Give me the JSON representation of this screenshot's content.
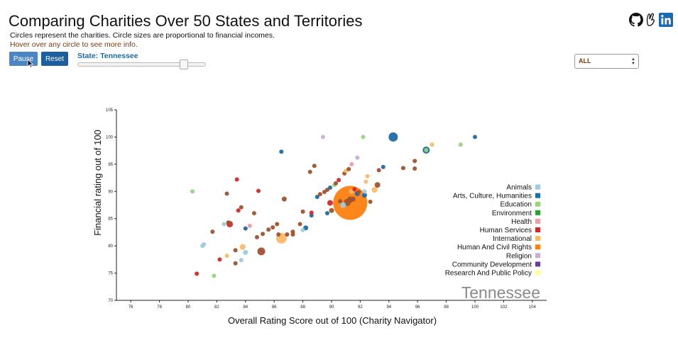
{
  "header": {
    "title": "Comparing Charities Over 50 States and Territories",
    "subtitle": "Circles represent the charities. Circle sizes are proportional to financial incomes.",
    "hint": "Hover over any circle to see more info."
  },
  "controls": {
    "pause_label": "Pause",
    "reset_label": "Reset",
    "state_prefix": "State: ",
    "state_name": "Tennessee",
    "state_label": "State: Tennessee",
    "slider_position_fraction": 0.83,
    "select_value": "ALL"
  },
  "social_icons": [
    "github-icon",
    "devpost-icon",
    "linkedin-icon"
  ],
  "colors": {
    "Animals": "#9ecae1",
    "Arts, Culture, Humanities": "#1f6aa8",
    "Education": "#98d47c",
    "Environment": "#2ca02c",
    "Health": "#f19ca6",
    "Human Services": "#d62728",
    "International": "#fdb868",
    "Human And Civil Rights": "#ff7f0e",
    "Religion": "#c5b0d5",
    "Community Development": "#6a3d9a",
    "Research And Public Policy": "#ffff99",
    "Highlighted": "#a0522d"
  },
  "chart_data": {
    "type": "scatter",
    "title": "",
    "xlabel": "Overall Rating Score out of 100 (Charity Navigator)",
    "ylabel": "Financial rating out of 100",
    "xlim": [
      75,
      105
    ],
    "ylim": [
      70,
      105
    ],
    "xticks": [
      76,
      78,
      80,
      82,
      84,
      86,
      88,
      90,
      92,
      94,
      96,
      98,
      100,
      102,
      104
    ],
    "yticks": [
      70,
      75,
      80,
      85,
      90,
      95,
      100,
      105
    ],
    "grid": false,
    "legend_position": "right",
    "legend": [
      "Animals",
      "Arts, Culture, Humanities",
      "Education",
      "Environment",
      "Health",
      "Human Services",
      "International",
      "Human And Civil Rights",
      "Religion",
      "Community Development",
      "Research And Public Policy"
    ],
    "state_watermark": "Tennessee",
    "points": [
      {
        "x": 80.3,
        "y": 90.0,
        "r": 3,
        "cat": "Education"
      },
      {
        "x": 80.6,
        "y": 74.9,
        "r": 3,
        "cat": "Human Services"
      },
      {
        "x": 81.0,
        "y": 80.0,
        "r": 3,
        "cat": "Animals"
      },
      {
        "x": 81.1,
        "y": 80.3,
        "r": 3,
        "cat": "Animals"
      },
      {
        "x": 81.8,
        "y": 74.5,
        "r": 3,
        "cat": "Education"
      },
      {
        "x": 81.7,
        "y": 82.6,
        "r": 3,
        "cat": "Highlighted"
      },
      {
        "x": 82.2,
        "y": 77.5,
        "r": 3,
        "cat": "Human Services"
      },
      {
        "x": 82.5,
        "y": 84.0,
        "r": 3,
        "cat": "Animals"
      },
      {
        "x": 82.7,
        "y": 78.2,
        "r": 3,
        "cat": "International"
      },
      {
        "x": 82.8,
        "y": 84.3,
        "r": 3,
        "cat": "Highlighted"
      },
      {
        "x": 82.7,
        "y": 89.6,
        "r": 3,
        "cat": "Highlighted"
      },
      {
        "x": 82.9,
        "y": 84.0,
        "r": 4.5,
        "cat": "Human Services"
      },
      {
        "x": 83.3,
        "y": 79.2,
        "r": 3,
        "cat": "Highlighted"
      },
      {
        "x": 83.3,
        "y": 76.8,
        "r": 3,
        "cat": "Highlighted"
      },
      {
        "x": 83.4,
        "y": 92.2,
        "r": 3,
        "cat": "Human Services"
      },
      {
        "x": 83.5,
        "y": 86.5,
        "r": 3,
        "cat": "Human Services"
      },
      {
        "x": 83.7,
        "y": 87.1,
        "r": 3,
        "cat": "Highlighted"
      },
      {
        "x": 83.7,
        "y": 77.4,
        "r": 3,
        "cat": "Animals"
      },
      {
        "x": 83.8,
        "y": 79.8,
        "r": 4,
        "cat": "International"
      },
      {
        "x": 84.0,
        "y": 83.2,
        "r": 3,
        "cat": "Arts, Culture, Humanities"
      },
      {
        "x": 84.0,
        "y": 78.8,
        "r": 3.5,
        "cat": "Animals"
      },
      {
        "x": 84.3,
        "y": 83.7,
        "r": 3,
        "cat": "Health"
      },
      {
        "x": 84.6,
        "y": 86.0,
        "r": 3,
        "cat": "Highlighted"
      },
      {
        "x": 84.8,
        "y": 81.6,
        "r": 3,
        "cat": "Highlighted"
      },
      {
        "x": 84.9,
        "y": 90.1,
        "r": 3,
        "cat": "Human Services"
      },
      {
        "x": 85.1,
        "y": 79.0,
        "r": 5.5,
        "cat": "Highlighted"
      },
      {
        "x": 85.2,
        "y": 82.2,
        "r": 3,
        "cat": "Highlighted"
      },
      {
        "x": 85.6,
        "y": 83.0,
        "r": 3,
        "cat": "Highlighted"
      },
      {
        "x": 85.9,
        "y": 83.4,
        "r": 3,
        "cat": "Highlighted"
      },
      {
        "x": 86.2,
        "y": 84.0,
        "r": 3,
        "cat": "Highlighted"
      },
      {
        "x": 86.3,
        "y": 82.1,
        "r": 3,
        "cat": "Highlighted"
      },
      {
        "x": 86.5,
        "y": 97.3,
        "r": 3,
        "cat": "Arts, Culture, Humanities"
      },
      {
        "x": 86.5,
        "y": 81.4,
        "r": 7.5,
        "cat": "International"
      },
      {
        "x": 86.7,
        "y": 88.6,
        "r": 3.5,
        "cat": "Highlighted"
      },
      {
        "x": 86.9,
        "y": 82.1,
        "r": 3,
        "cat": "Highlighted"
      },
      {
        "x": 87.3,
        "y": 82.6,
        "r": 3,
        "cat": "Highlighted"
      },
      {
        "x": 87.3,
        "y": 82.1,
        "r": 3,
        "cat": "Highlighted"
      },
      {
        "x": 87.8,
        "y": 84.0,
        "r": 3,
        "cat": "Highlighted"
      },
      {
        "x": 88.0,
        "y": 86.3,
        "r": 3,
        "cat": "Highlighted"
      },
      {
        "x": 88.0,
        "y": 82.9,
        "r": 3,
        "cat": "Animals"
      },
      {
        "x": 88.2,
        "y": 83.3,
        "r": 3.5,
        "cat": "Arts, Culture, Humanities"
      },
      {
        "x": 88.5,
        "y": 93.6,
        "r": 3,
        "cat": "Highlighted"
      },
      {
        "x": 88.6,
        "y": 85.6,
        "r": 3,
        "cat": "Arts, Culture, Humanities"
      },
      {
        "x": 88.6,
        "y": 86.1,
        "r": 3,
        "cat": "Human Services"
      },
      {
        "x": 88.8,
        "y": 94.7,
        "r": 3,
        "cat": "Highlighted"
      },
      {
        "x": 89.0,
        "y": 89.0,
        "r": 3,
        "cat": "Arts, Culture, Humanities"
      },
      {
        "x": 89.2,
        "y": 89.5,
        "r": 3,
        "cat": "Highlighted"
      },
      {
        "x": 89.4,
        "y": 100.0,
        "r": 3,
        "cat": "Religion"
      },
      {
        "x": 89.5,
        "y": 89.9,
        "r": 3,
        "cat": "Highlighted"
      },
      {
        "x": 89.7,
        "y": 90.3,
        "r": 3,
        "cat": "Highlighted"
      },
      {
        "x": 89.7,
        "y": 86.0,
        "r": 3,
        "cat": "Arts, Culture, Humanities"
      },
      {
        "x": 89.9,
        "y": 90.7,
        "r": 3,
        "cat": "Arts, Culture, Humanities"
      },
      {
        "x": 89.9,
        "y": 87.9,
        "r": 4,
        "cat": "Human Services"
      },
      {
        "x": 90.0,
        "y": 86.5,
        "r": 3.5,
        "cat": "Highlighted"
      },
      {
        "x": 90.2,
        "y": 91.2,
        "r": 3,
        "cat": "Education"
      },
      {
        "x": 90.3,
        "y": 91.5,
        "r": 3,
        "cat": "Highlighted"
      },
      {
        "x": 90.5,
        "y": 92.1,
        "r": 3,
        "cat": "Human Services"
      },
      {
        "x": 90.6,
        "y": 88.2,
        "r": 3,
        "cat": "Highlighted"
      },
      {
        "x": 90.8,
        "y": 87.5,
        "r": 4,
        "cat": "Animals"
      },
      {
        "x": 90.9,
        "y": 93.3,
        "r": 3,
        "cat": "Highlighted"
      },
      {
        "x": 91.0,
        "y": 93.8,
        "r": 3,
        "cat": "International"
      },
      {
        "x": 91.2,
        "y": 94.1,
        "r": 3,
        "cat": "Highlighted"
      },
      {
        "x": 91.1,
        "y": 88.0,
        "r": 5,
        "cat": "Highlighted"
      },
      {
        "x": 91.3,
        "y": 88.5,
        "r": 4.5,
        "cat": "Highlighted"
      },
      {
        "x": 91.3,
        "y": 87.9,
        "r": 24,
        "cat": "Human And Civil Rights"
      },
      {
        "x": 91.5,
        "y": 88.6,
        "r": 3.5,
        "cat": "Highlighted"
      },
      {
        "x": 91.4,
        "y": 95.0,
        "r": 3,
        "cat": "Health"
      },
      {
        "x": 91.4,
        "y": 90.0,
        "r": 3.5,
        "cat": "International"
      },
      {
        "x": 91.6,
        "y": 90.4,
        "r": 3,
        "cat": "Human Services"
      },
      {
        "x": 91.8,
        "y": 89.6,
        "r": 3.5,
        "cat": "Arts, Culture, Humanities"
      },
      {
        "x": 91.8,
        "y": 96.2,
        "r": 3,
        "cat": "Religion"
      },
      {
        "x": 91.9,
        "y": 89.9,
        "r": 3,
        "cat": "Highlighted"
      },
      {
        "x": 92.2,
        "y": 100.0,
        "r": 3,
        "cat": "Education"
      },
      {
        "x": 92.3,
        "y": 89.3,
        "r": 3.5,
        "cat": "Arts, Culture, Humanities"
      },
      {
        "x": 92.3,
        "y": 90.0,
        "r": 3,
        "cat": "Animals"
      },
      {
        "x": 92.4,
        "y": 91.8,
        "r": 3,
        "cat": "International"
      },
      {
        "x": 92.5,
        "y": 92.8,
        "r": 3,
        "cat": "International"
      },
      {
        "x": 92.7,
        "y": 88.1,
        "r": 3,
        "cat": "Highlighted"
      },
      {
        "x": 93.0,
        "y": 90.3,
        "r": 4,
        "cat": "International"
      },
      {
        "x": 93.2,
        "y": 91.2,
        "r": 4,
        "cat": "Highlighted"
      },
      {
        "x": 93.3,
        "y": 93.9,
        "r": 3,
        "cat": "Highlighted"
      },
      {
        "x": 93.6,
        "y": 94.5,
        "r": 3,
        "cat": "Arts, Culture, Humanities"
      },
      {
        "x": 94.3,
        "y": 100.0,
        "r": 6.5,
        "cat": "Arts, Culture, Humanities"
      },
      {
        "x": 95.0,
        "y": 94.3,
        "r": 3,
        "cat": "Highlighted"
      },
      {
        "x": 95.8,
        "y": 95.6,
        "r": 3,
        "cat": "Highlighted"
      },
      {
        "x": 95.8,
        "y": 94.2,
        "r": 3,
        "cat": "Highlighted"
      },
      {
        "x": 96.6,
        "y": 97.6,
        "r": 5,
        "cat": "Arts, Culture, Humanities"
      },
      {
        "x": 96.6,
        "y": 97.6,
        "r": 3,
        "cat": "Education"
      },
      {
        "x": 97.0,
        "y": 98.6,
        "r": 3,
        "cat": "International"
      },
      {
        "x": 99.0,
        "y": 98.6,
        "r": 3,
        "cat": "Education"
      },
      {
        "x": 100.0,
        "y": 100.0,
        "r": 3,
        "cat": "Arts, Culture, Humanities"
      }
    ]
  }
}
